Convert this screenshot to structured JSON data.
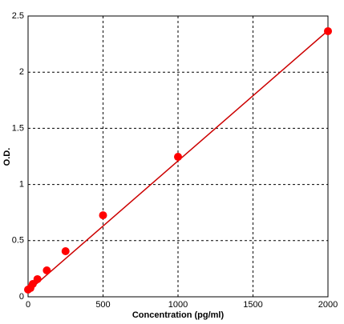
{
  "chart_data": {
    "type": "scatter",
    "xlabel": "Concentration (pg/ml)",
    "ylabel": "O.D.",
    "x": [
      0,
      15.6,
      31.25,
      62.5,
      125,
      250,
      500,
      1000,
      2000
    ],
    "values": [
      0.064,
      0.078,
      0.114,
      0.157,
      0.235,
      0.406,
      0.726,
      1.246,
      2.365
    ],
    "color": "#ff0000",
    "fit": {
      "x": [
        0,
        2000
      ],
      "values": [
        0.05,
        2.37
      ],
      "color": "#cc0000"
    },
    "xlim": [
      0,
      2000
    ],
    "xticks": [
      0,
      500,
      1000,
      1500,
      2000
    ],
    "ylim": [
      0,
      2.5
    ],
    "yticks": [
      0,
      0.5,
      1,
      1.5,
      2,
      2.5
    ],
    "grid": true
  }
}
